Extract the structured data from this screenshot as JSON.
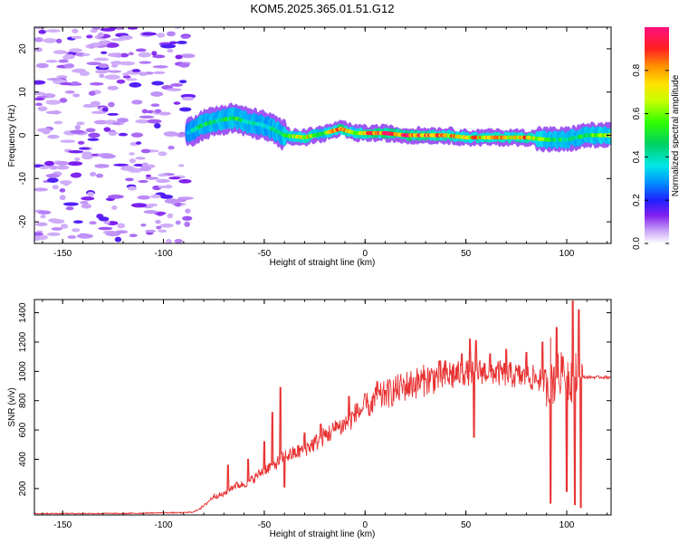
{
  "title": "KOM5.2025.365.01.51.G12",
  "colorbar": {
    "label": "Normalized spectral amplitude",
    "ticks": [
      "0.0",
      "0.2",
      "0.4",
      "0.6",
      "0.8"
    ]
  },
  "chart_data": [
    {
      "type": "heatmap",
      "xlabel": "Height of straight line (km)",
      "ylabel": "Frequency (Hz)",
      "xlim": [
        -164,
        122
      ],
      "ylim": [
        -25,
        25
      ],
      "xticks": [
        "-150",
        "-100",
        "-50",
        "0",
        "50",
        "100"
      ],
      "yticks": [
        "-20",
        "-10",
        "0",
        "10",
        "20"
      ],
      "color_range": [
        0,
        1
      ],
      "noise_region_x": [
        -164,
        -87
      ],
      "ridge": {
        "x": [
          -88,
          -80,
          -72,
          -65,
          -58,
          -52,
          -46,
          -40,
          -30,
          -20,
          -12,
          -5,
          0,
          10,
          20,
          30,
          40,
          50,
          60,
          70,
          80,
          90,
          100,
          110,
          122
        ],
        "freq": [
          0.5,
          2.5,
          3.5,
          4.0,
          3.0,
          2.5,
          1.5,
          0.0,
          -0.5,
          0.5,
          1.5,
          0.5,
          0.5,
          0.5,
          0.0,
          0.0,
          0.0,
          -0.5,
          -0.5,
          -0.5,
          -0.5,
          -1.0,
          -1.0,
          0.0,
          0.0
        ],
        "amplitude": [
          0.3,
          0.45,
          0.45,
          0.5,
          0.45,
          0.4,
          0.4,
          0.5,
          0.7,
          0.5,
          0.9,
          0.6,
          0.8,
          0.85,
          0.9,
          0.8,
          0.75,
          0.7,
          0.75,
          0.7,
          0.75,
          0.5,
          0.45,
          0.5,
          0.6
        ]
      }
    },
    {
      "type": "line",
      "xlabel": "Height of straight line (km)",
      "ylabel": "SNR (v/v)",
      "xlim": [
        -164,
        122
      ],
      "ylim": [
        20,
        1490
      ],
      "xticks": [
        "-150",
        "-100",
        "-50",
        "0",
        "50",
        "100"
      ],
      "yticks": [
        "200",
        "400",
        "600",
        "800",
        "1000",
        "1200",
        "1400"
      ],
      "color": "#e83030",
      "series": [
        {
          "name": "SNR",
          "x": [
            -164,
            -150,
            -120,
            -100,
            -90,
            -85,
            -80,
            -75,
            -70,
            -65,
            -60,
            -55,
            -50,
            -45,
            -40,
            -35,
            -30,
            -25,
            -20,
            -15,
            -10,
            -5,
            0,
            5,
            10,
            15,
            20,
            25,
            30,
            35,
            40,
            45,
            50,
            55,
            60,
            65,
            70,
            75,
            80,
            85,
            90,
            95,
            100,
            105,
            108,
            110,
            115,
            122
          ],
          "y": [
            30,
            30,
            30,
            35,
            35,
            40,
            80,
            150,
            160,
            220,
            230,
            270,
            330,
            360,
            420,
            440,
            470,
            510,
            560,
            600,
            640,
            700,
            760,
            800,
            840,
            870,
            900,
            920,
            940,
            960,
            970,
            980,
            990,
            1000,
            1000,
            990,
            980,
            970,
            960,
            950,
            940,
            950,
            970,
            960,
            960,
            960,
            960,
            960
          ],
          "spikes": [
            {
              "x": -68,
              "y": 360
            },
            {
              "x": -58,
              "y": 400
            },
            {
              "x": -50,
              "y": 520
            },
            {
              "x": -46,
              "y": 720
            },
            {
              "x": -42,
              "y": 890
            },
            {
              "x": -40,
              "y": 210
            },
            {
              "x": -30,
              "y": 580
            },
            {
              "x": -22,
              "y": 640
            },
            {
              "x": -14,
              "y": 650
            },
            {
              "x": -8,
              "y": 830
            },
            {
              "x": -4,
              "y": 780
            },
            {
              "x": 2,
              "y": 700
            },
            {
              "x": 6,
              "y": 930
            },
            {
              "x": 10,
              "y": 870
            },
            {
              "x": 30,
              "y": 950
            },
            {
              "x": 48,
              "y": 1120
            },
            {
              "x": 52,
              "y": 1220
            },
            {
              "x": 55,
              "y": 1210
            },
            {
              "x": 54,
              "y": 550
            },
            {
              "x": 62,
              "y": 1120
            },
            {
              "x": 70,
              "y": 1150
            },
            {
              "x": 80,
              "y": 1130
            },
            {
              "x": 88,
              "y": 1200
            },
            {
              "x": 92,
              "y": 1230
            },
            {
              "x": 92,
              "y": 100
            },
            {
              "x": 95,
              "y": 1300
            },
            {
              "x": 98,
              "y": 1100
            },
            {
              "x": 100,
              "y": 180
            },
            {
              "x": 103,
              "y": 1480
            },
            {
              "x": 104,
              "y": 90
            },
            {
              "x": 106,
              "y": 1420
            },
            {
              "x": 107,
              "y": 70
            }
          ]
        }
      ]
    }
  ]
}
